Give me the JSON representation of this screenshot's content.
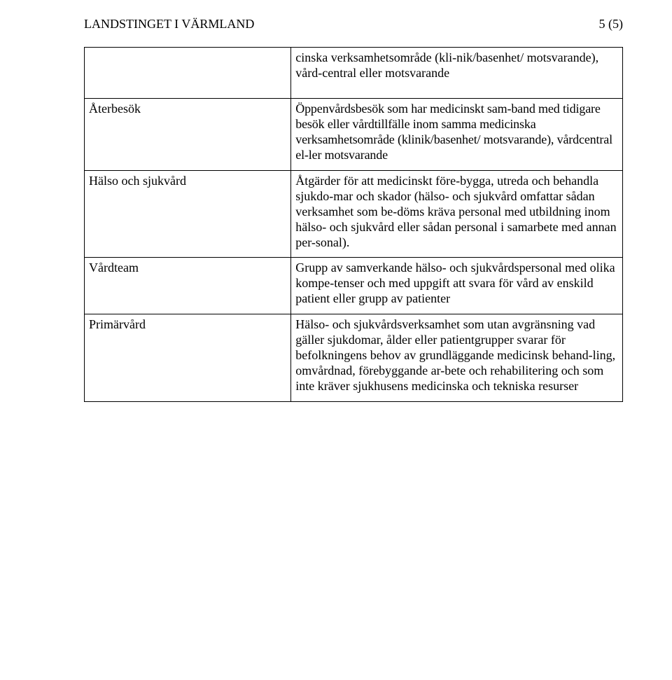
{
  "header": {
    "left": "LANDSTINGET I VÄRMLAND",
    "right": "5 (5)"
  },
  "intro_cell": "cinska verksamhetsområde (kli-nik/basenhet/ motsvarande), vård-central eller motsvarande",
  "rows": [
    {
      "term": "Återbesök",
      "def": "Öppenvårdsbesök som har medicinskt sam-band med tidigare besök eller vårdtillfälle inom samma medicinska verksamhetsområde (klinik/basenhet/ motsvarande), vårdcentral el-ler motsvarande"
    },
    {
      "term": "Hälso och sjukvård",
      "def": "Åtgärder för att medicinskt före-bygga, utreda och behandla sjukdo-mar och skador (hälso- och sjukvård omfattar sådan verksamhet som be-döms kräva personal med utbildning inom hälso- och sjukvård eller sådan personal i samarbete med annan per-sonal)."
    },
    {
      "term": "Vårdteam",
      "def": "Grupp av samverkande hälso- och sjukvårdspersonal med olika kompe-tenser och med uppgift att svara för vård av enskild patient eller grupp av patienter"
    },
    {
      "term": "Primärvård",
      "def": "Hälso- och sjukvårdsverksamhet som utan avgränsning vad gäller sjukdomar, ålder eller patientgrupper svarar för befolkningens behov av grundläggande medicinsk behand-ling, omvårdnad, förebyggande ar-bete och rehabilitering och som inte kräver sjukhusens medicinska och tekniska resurser"
    }
  ]
}
